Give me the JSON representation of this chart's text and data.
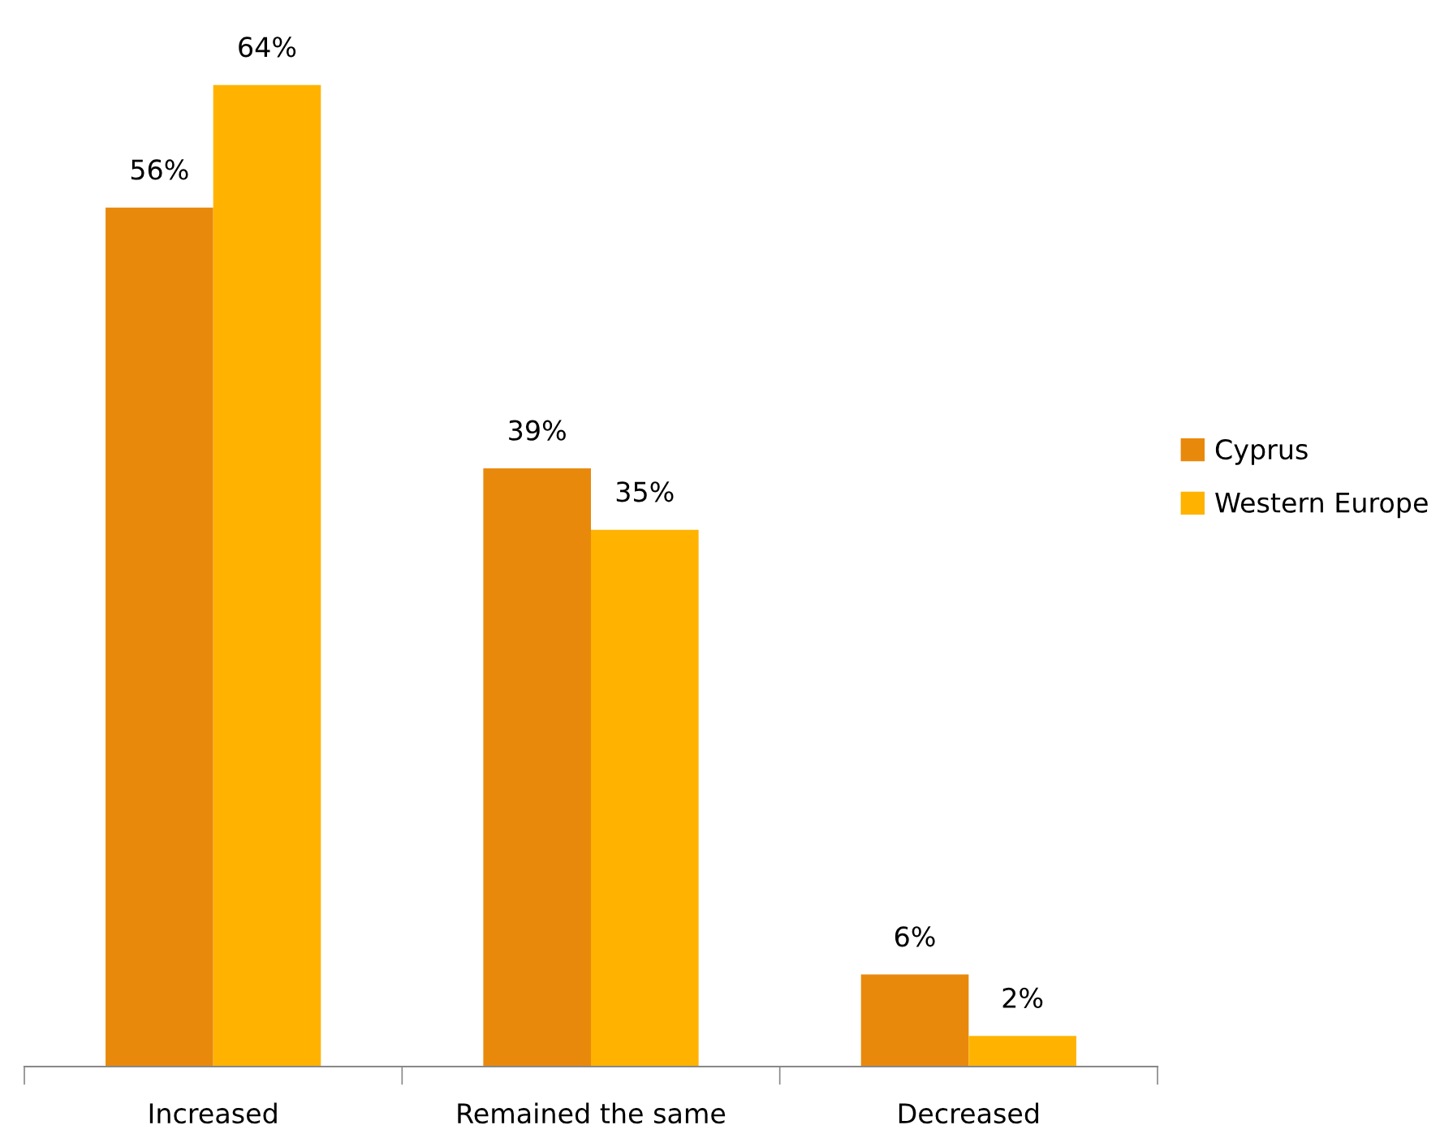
{
  "chart_data": {
    "type": "bar",
    "categories": [
      "Increased",
      "Remained the same",
      "Decreased"
    ],
    "legend": "right",
    "grid": false,
    "series": [
      {
        "name": "Cyprus",
        "color": "#e8890c",
        "values": [
          56,
          39,
          6
        ],
        "value_labels": [
          "56%",
          "39%",
          "6%"
        ]
      },
      {
        "name": "Western Europe",
        "color": "#ffb300",
        "values": [
          64,
          35,
          2
        ],
        "value_labels": [
          "64%",
          "35%",
          "2%"
        ]
      }
    ]
  }
}
